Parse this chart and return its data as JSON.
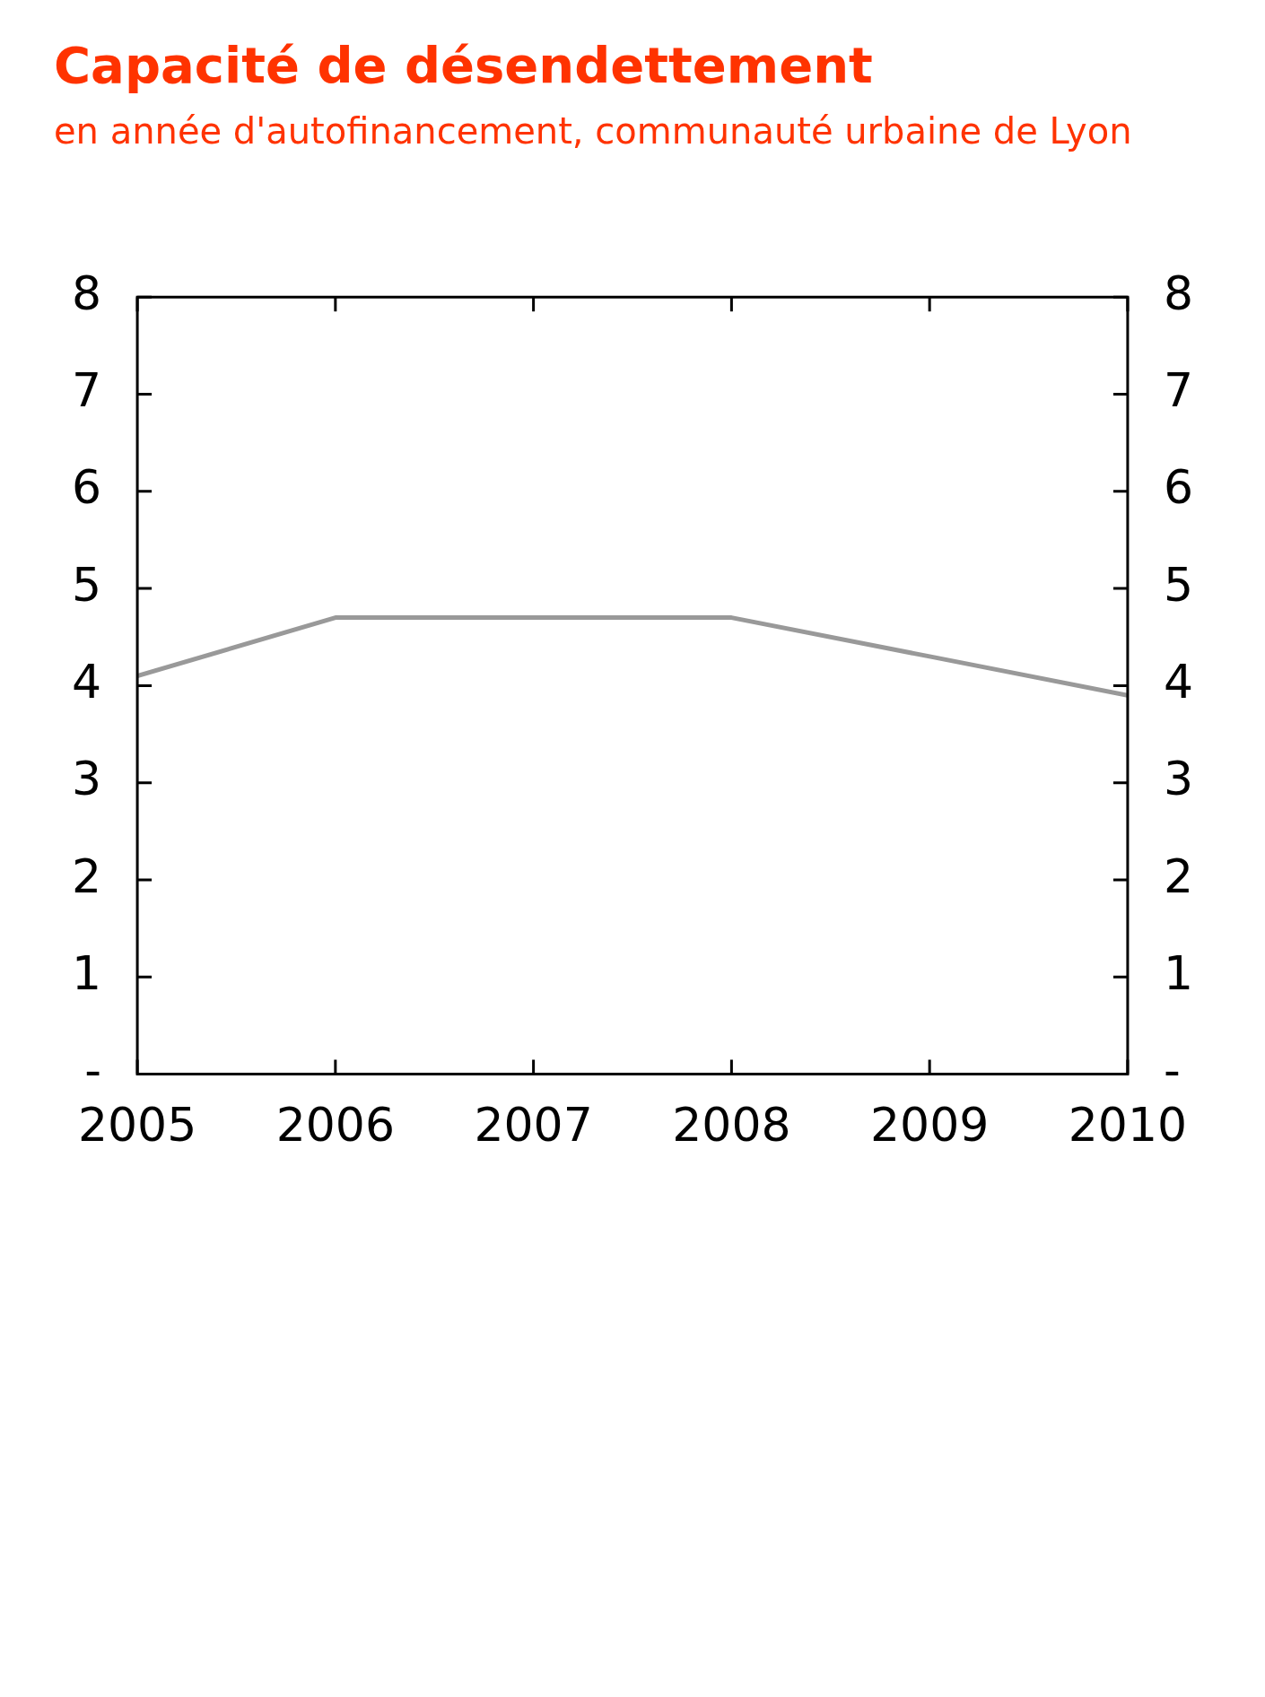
{
  "chart_data": {
    "type": "line",
    "title": "Capacité de désendettement",
    "subtitle": "en année d'autofinancement, communauté urbaine de Lyon",
    "x": [
      2005,
      2006,
      2007,
      2008,
      2009,
      2010
    ],
    "series": [
      {
        "color": "#999999",
        "values": [
          4.1,
          4.7,
          4.7,
          4.7,
          4.3,
          3.9
        ]
      }
    ],
    "xlim": [
      2005,
      2010
    ],
    "xticks": [
      2005,
      2006,
      2007,
      2008,
      2009,
      2010
    ],
    "ylim": [
      0,
      8
    ],
    "yticks": [
      {
        "value": 0,
        "label": "-"
      },
      1,
      2,
      3,
      4,
      5,
      6,
      7,
      8
    ],
    "y2lim": [
      0,
      8
    ],
    "y2ticks": [
      {
        "value": 0,
        "label": "-"
      },
      1,
      2,
      3,
      4,
      5,
      6,
      7,
      8
    ],
    "grid": false,
    "legend": false,
    "marker": "none",
    "line_style": "solid"
  }
}
